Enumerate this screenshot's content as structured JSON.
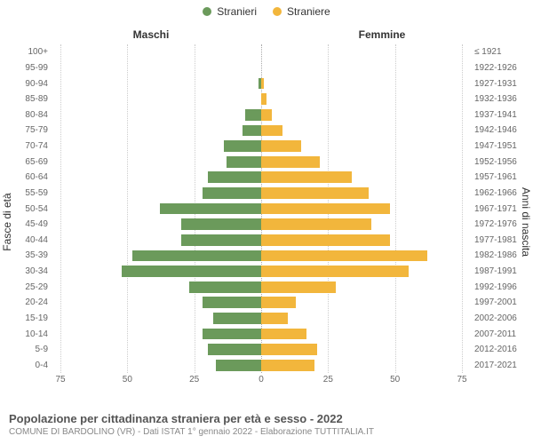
{
  "chart": {
    "type": "population-pyramid",
    "legend": {
      "male": {
        "label": "Stranieri",
        "color": "#6b9a5b"
      },
      "female": {
        "label": "Straniere",
        "color": "#f2b63c"
      }
    },
    "headers": {
      "male": "Maschi",
      "female": "Femmine"
    },
    "axis_titles": {
      "left": "Fasce di età",
      "right": "Anni di nascita"
    },
    "xlim": 75,
    "xticks": [
      75,
      50,
      25,
      0,
      25,
      50,
      75
    ],
    "grid_color": "#cccccc",
    "background_color": "#ffffff",
    "label_fontsize": 10,
    "male_color": "#6b9a5b",
    "female_color": "#f2b63c",
    "footer": {
      "title": "Popolazione per cittadinanza straniera per età e sesso - 2022",
      "subtitle": "COMUNE DI BARDOLINO (VR) - Dati ISTAT 1° gennaio 2022 - Elaborazione TUTTITALIA.IT"
    },
    "rows": [
      {
        "age": "100+",
        "birth": "≤ 1921",
        "m": 0,
        "f": 0
      },
      {
        "age": "95-99",
        "birth": "1922-1926",
        "m": 0,
        "f": 0
      },
      {
        "age": "90-94",
        "birth": "1927-1931",
        "m": 1,
        "f": 1
      },
      {
        "age": "85-89",
        "birth": "1932-1936",
        "m": 0,
        "f": 2
      },
      {
        "age": "80-84",
        "birth": "1937-1941",
        "m": 6,
        "f": 4
      },
      {
        "age": "75-79",
        "birth": "1942-1946",
        "m": 7,
        "f": 8
      },
      {
        "age": "70-74",
        "birth": "1947-1951",
        "m": 14,
        "f": 15
      },
      {
        "age": "65-69",
        "birth": "1952-1956",
        "m": 13,
        "f": 22
      },
      {
        "age": "60-64",
        "birth": "1957-1961",
        "m": 20,
        "f": 34
      },
      {
        "age": "55-59",
        "birth": "1962-1966",
        "m": 22,
        "f": 40
      },
      {
        "age": "50-54",
        "birth": "1967-1971",
        "m": 38,
        "f": 48
      },
      {
        "age": "45-49",
        "birth": "1972-1976",
        "m": 30,
        "f": 41
      },
      {
        "age": "40-44",
        "birth": "1977-1981",
        "m": 30,
        "f": 48
      },
      {
        "age": "35-39",
        "birth": "1982-1986",
        "m": 48,
        "f": 62
      },
      {
        "age": "30-34",
        "birth": "1987-1991",
        "m": 52,
        "f": 55
      },
      {
        "age": "25-29",
        "birth": "1992-1996",
        "m": 27,
        "f": 28
      },
      {
        "age": "20-24",
        "birth": "1997-2001",
        "m": 22,
        "f": 13
      },
      {
        "age": "15-19",
        "birth": "2002-2006",
        "m": 18,
        "f": 10
      },
      {
        "age": "10-14",
        "birth": "2007-2011",
        "m": 22,
        "f": 17
      },
      {
        "age": "5-9",
        "birth": "2012-2016",
        "m": 20,
        "f": 21
      },
      {
        "age": "0-4",
        "birth": "2017-2021",
        "m": 17,
        "f": 20
      }
    ]
  }
}
